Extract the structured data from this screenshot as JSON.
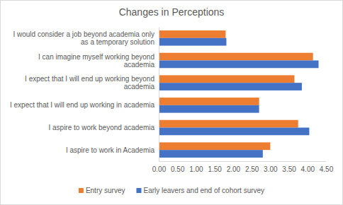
{
  "chart_data": {
    "type": "bar",
    "orientation": "horizontal",
    "title": "Changes in Perceptions",
    "categories": [
      "I would consider a job beyond academia only as a temporary solution",
      "I can imagine myself working beyond academia",
      "I expect that I will end up working beyond academia",
      "I expect that I will end up working in academia",
      "I aspire to work beyond academia",
      "I aspire to work in Academia"
    ],
    "series": [
      {
        "name": "Entry survey",
        "color": "#ed7d31",
        "values": [
          1.8,
          4.15,
          3.65,
          2.7,
          3.75,
          3.0
        ]
      },
      {
        "name": "Early leavers and end of cohort survey",
        "color": "#4472c4",
        "values": [
          1.82,
          4.3,
          3.85,
          2.7,
          4.05,
          2.8
        ]
      }
    ],
    "xlim": [
      0,
      4.5
    ],
    "xticks": [
      {
        "value": 0,
        "label": "0.00"
      },
      {
        "value": 0.5,
        "label": "0.50"
      },
      {
        "value": 1,
        "label": "1.00"
      },
      {
        "value": 1.5,
        "label": "1.50"
      },
      {
        "value": 2,
        "label": "2.00"
      },
      {
        "value": 2.5,
        "label": "2.50"
      },
      {
        "value": 3,
        "label": "3.00"
      },
      {
        "value": 3.5,
        "label": "3.50"
      },
      {
        "value": 4,
        "label": "4.00"
      },
      {
        "value": 4.5,
        "label": "4.50"
      }
    ],
    "grid": false,
    "legend": "bottom"
  }
}
